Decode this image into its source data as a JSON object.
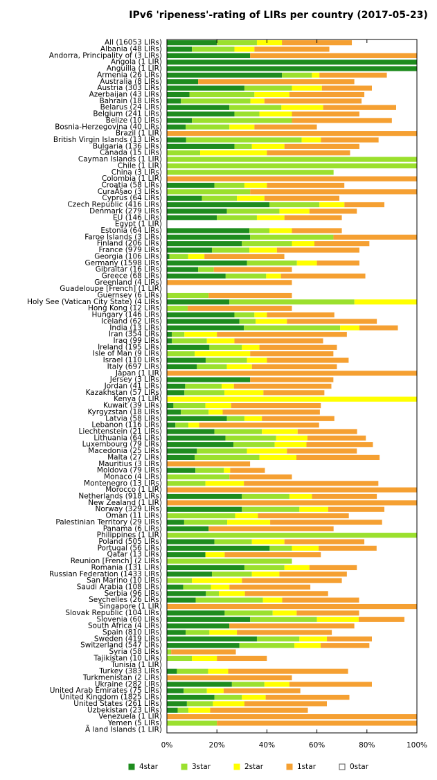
{
  "chart_data": {
    "type": "stacked-barh",
    "title": "IPv6 'ripeness'-rating of LIRs per country (2017-05-23)",
    "categories": [
      "All (16053 LIRs)",
      "Albania (48 LIRs)",
      "Andorra, Principality of (3 LIRs)",
      "Angola (1 LIR)",
      "Anguilla (1 LIR)",
      "Armenia (26 LIRs)",
      "Australia (8 LIRs)",
      "Austria (303 LIRs)",
      "Azerbaijan (43 LIRs)",
      "Bahrain (18 LIRs)",
      "Belarus (24 LIRs)",
      "Belgium (241 LIRs)",
      "Belize (10 LIRs)",
      "Bosnia-Herzegovina (40 LIRs)",
      "Brazil (1 LIR)",
      "British Virgin Islands (13 LIRs)",
      "Bulgaria (136 LIRs)",
      "Canada (15 LIRs)",
      "Cayman Islands (1 LIR)",
      "Chile (1 LIR)",
      "China (3 LIRs)",
      "Colombia (1 LIR)",
      "Croatia (58 LIRs)",
      "CuraÃ§ao (3 LIRs)",
      "Cyprus (64 LIRs)",
      "Czech Republic (416 LIRs)",
      "Denmark (279 LIRs)",
      "EU (146 LIRs)",
      "Egypt (1 LIR)",
      "Estonia (64 LIRs)",
      "Faroe Islands (3 LIRs)",
      "Finland (206 LIRs)",
      "France (979 LIRs)",
      "Georgia (106 LIRs)",
      "Germany (1598 LIRs)",
      "Gibraltar (16 LIRs)",
      "Greece (68 LIRs)",
      "Greenland (4 LIRs)",
      "Guadeloupe [French] (1 LIR)",
      "Guernsey (6 LIRs)",
      "Holy See (Vatican City State) (4 LIRs)",
      "Hong Kong (12 LIRs)",
      "Hungary (146 LIRs)",
      "Iceland (62 LIRs)",
      "India (13 LIRs)",
      "Iran (354 LIRs)",
      "Iraq (99 LIRs)",
      "Ireland (195 LIRs)",
      "Isle of Man (9 LIRs)",
      "Israel (110 LIRs)",
      "Italy (697 LIRs)",
      "Japan (1 LIR)",
      "Jersey (3 LIRs)",
      "Jordan (41 LIRs)",
      "Kazakhstan (57 LIRs)",
      "Kenya (1 LIR)",
      "Kuwait (39 LIRs)",
      "Kyrgyzstan (18 LIRs)",
      "Latvia (58 LIRs)",
      "Lebanon (116 LIRs)",
      "Liechtenstein (21 LIRs)",
      "Lithuania (64 LIRs)",
      "Luxembourg (79 LIRs)",
      "Macedonia (25 LIRs)",
      "Malta (27 LIRs)",
      "Mauritius (3 LIRs)",
      "Moldova (79 LIRs)",
      "Monaco (4 LIRs)",
      "Montenegro (13 LIRs)",
      "Morocco (1 LIR)",
      "Netherlands (918 LIRs)",
      "New Zealand (1 LIR)",
      "Norway (329 LIRs)",
      "Oman (11 LIRs)",
      "Palestinian Territory (29 LIRs)",
      "Panama (6 LIRs)",
      "Philippines (1 LIR)",
      "Poland (505 LIRs)",
      "Portugal (56 LIRs)",
      "Qatar (13 LIRs)",
      "Reunion [French] (2 LIRs)",
      "Romania (131 LIRs)",
      "Russian Federation (1433 LIRs)",
      "San Marino (10 LIRs)",
      "Saudi Arabia (108 LIRs)",
      "Serbia (96 LIRs)",
      "Seychelles (26 LIRs)",
      "Singapore (1 LIR)",
      "Slovak Republic (104 LIRs)",
      "Slovenia (60 LIRs)",
      "South Africa (4 LIRs)",
      "Spain (810 LIRs)",
      "Sweden (419 LIRs)",
      "Switzerland (547 LIRs)",
      "Syria (58 LIRs)",
      "Tajikistan (10 LIRs)",
      "Tunisia (1 LIR)",
      "Turkey (383 LIRs)",
      "Turkmenistan (2 LIRs)",
      "Ukraine (282 LIRs)",
      "United Arab Emirates (75 LIRs)",
      "United Kingdom (1825 LIRs)",
      "United States (261 LIRs)",
      "Uzbekistan (23 LIRs)",
      "Venezuela (1 LIR)",
      "Yemen (5 LIRs)",
      "Ã land Islands (1 LIR)"
    ],
    "series": [
      {
        "name": "4star",
        "color": "#1e8c1e",
        "values": [
          20,
          10,
          33.3,
          100,
          100,
          46,
          12.5,
          31,
          9,
          5.6,
          25,
          27,
          10,
          7.5,
          0,
          7.7,
          27,
          0,
          0,
          0,
          0,
          0,
          19,
          0,
          14,
          41,
          24,
          20,
          0,
          33,
          33.3,
          30,
          18,
          1,
          32,
          12.5,
          23.5,
          0,
          0,
          0,
          25,
          0,
          27,
          29,
          30.8,
          2,
          2,
          17,
          0,
          15.5,
          12,
          0,
          33.3,
          7.3,
          7,
          0,
          2.6,
          5.6,
          24,
          3.4,
          19,
          23.4,
          26.6,
          12,
          11.1,
          0,
          11.4,
          0,
          0,
          0,
          30,
          0,
          30,
          0,
          6.9,
          16.7,
          0,
          19,
          41.1,
          15.4,
          0,
          31,
          18,
          0,
          6.5,
          15.6,
          11.5,
          0,
          23.1,
          33.3,
          25,
          7.5,
          36,
          29,
          0,
          0,
          0,
          4,
          0,
          26,
          6.7,
          19,
          8,
          4.3,
          0,
          0,
          0
        ]
      },
      {
        "name": "3star",
        "color": "#9be02e",
        "values": [
          16,
          17,
          0,
          0,
          0,
          12,
          0,
          19,
          26,
          27.8,
          20.8,
          10,
          40,
          17.5,
          0,
          46.2,
          7,
          13.3,
          100,
          100,
          66.7,
          0,
          12,
          33.3,
          14,
          20,
          21,
          16,
          0,
          8,
          33.3,
          20,
          15,
          7.5,
          20,
          6.25,
          16.2,
          0,
          0,
          16.7,
          50,
          8.3,
          8,
          6.5,
          38.5,
          5,
          14,
          13,
          11.1,
          16.5,
          12,
          0,
          0,
          14.6,
          16,
          0,
          12.8,
          11.1,
          7,
          5.2,
          19,
          20.3,
          16.5,
          20,
          25.9,
          0,
          11.4,
          25,
          15.4,
          0,
          19,
          0,
          23,
          27.3,
          17.2,
          0,
          100,
          15,
          8.9,
          0,
          50,
          16,
          16,
          10,
          11.1,
          5.2,
          26.9,
          0,
          19.2,
          26.7,
          0,
          9.5,
          17,
          22,
          1.7,
          10,
          0,
          12.5,
          0,
          13,
          9.3,
          11,
          10.4,
          4.3,
          0,
          20,
          0
        ]
      },
      {
        "name": "2star",
        "color": "#ffff00",
        "values": [
          10,
          8,
          0,
          0,
          0,
          3,
          0,
          12,
          14,
          5.6,
          16.7,
          13,
          0,
          10,
          0,
          7.7,
          13,
          26.7,
          0,
          0,
          0,
          0,
          9,
          0,
          11,
          10,
          12,
          11,
          0,
          9,
          0,
          9,
          11,
          6.5,
          8,
          0,
          5.9,
          0,
          0,
          0,
          25,
          0,
          5,
          12.5,
          7.7,
          13,
          11,
          7,
          22.2,
          8,
          10,
          0,
          0,
          4.9,
          15.6,
          100,
          10.3,
          5.6,
          7,
          4.3,
          14.3,
          12.5,
          12.7,
          16,
          14.8,
          0,
          2.5,
          0,
          15.4,
          0,
          9,
          0,
          11.5,
          9.1,
          17.2,
          0,
          0,
          13,
          10.7,
          7.7,
          0,
          10,
          11,
          20,
          7.4,
          10.4,
          7.7,
          0,
          9.6,
          16.7,
          0,
          11,
          11,
          10.5,
          0,
          10,
          0,
          8,
          0,
          10,
          6.7,
          9.5,
          12.6,
          8.7,
          0,
          0,
          0
        ]
      },
      {
        "name": "1star",
        "color": "#f5a032",
        "values": [
          28,
          30,
          66.7,
          0,
          0,
          27,
          62.5,
          20,
          30,
          38.9,
          29.2,
          27,
          40,
          25,
          100,
          23.1,
          30,
          33.3,
          0,
          0,
          0,
          100,
          31,
          66.7,
          30,
          16,
          19,
          23,
          0,
          20,
          33.3,
          22,
          33,
          32,
          17,
          31.25,
          33.8,
          50,
          0,
          33.3,
          0,
          41.7,
          27,
          36,
          15.4,
          52,
          35.5,
          31,
          33.3,
          32.7,
          34,
          100,
          33.3,
          39,
          24.4,
          0,
          35.9,
          38.9,
          29,
          48,
          23.8,
          23.4,
          26.6,
          28,
          33.3,
          33.3,
          13.9,
          25,
          53.8,
          100,
          26,
          100,
          22.5,
          36.4,
          44.8,
          50,
          0,
          32,
          23.2,
          38.5,
          0,
          19,
          27,
          40,
          32.4,
          33.3,
          30.8,
          100,
          25,
          18.3,
          50,
          38,
          18,
          19.5,
          25.9,
          20,
          0,
          48,
          50,
          33,
          30.7,
          33.5,
          33,
          39.1,
          100,
          80,
          0
        ]
      },
      {
        "name": "0star",
        "color": "#ffffff",
        "values": [
          26,
          35,
          0,
          0,
          0,
          12,
          25,
          18,
          21,
          22.2,
          8.3,
          23,
          10,
          40,
          0,
          15.4,
          23,
          26.7,
          0,
          0,
          33.3,
          0,
          29,
          0,
          31,
          13,
          24,
          30,
          100,
          30,
          0,
          19,
          23,
          53,
          23,
          50,
          20.6,
          50,
          100,
          50,
          0,
          50,
          33,
          16,
          7.7,
          28,
          37.5,
          32,
          33.3,
          27.3,
          32,
          0,
          33.3,
          34.1,
          37,
          0,
          38.5,
          38.9,
          33,
          39,
          23.8,
          20.3,
          17.7,
          24,
          14.8,
          66.7,
          60.8,
          50,
          15.4,
          0,
          16,
          0,
          13,
          27.3,
          13.8,
          33.3,
          0,
          21,
          16.1,
          38.5,
          50,
          24,
          28,
          30,
          42.6,
          35.4,
          23.1,
          0,
          23.1,
          5,
          25,
          34,
          18,
          19,
          72.4,
          60,
          100,
          27.5,
          50,
          18,
          46.7,
          27,
          36,
          43.5,
          0,
          0,
          100
        ]
      }
    ],
    "xlim": [
      0,
      100
    ],
    "xticks": [
      {
        "value": 0,
        "label": "0%"
      },
      {
        "value": 20,
        "label": "20%"
      },
      {
        "value": 40,
        "label": "40%"
      },
      {
        "value": 60,
        "label": "60%"
      },
      {
        "value": 80,
        "label": "80%"
      },
      {
        "value": 100,
        "label": "100%"
      }
    ],
    "legend": "bottom"
  }
}
